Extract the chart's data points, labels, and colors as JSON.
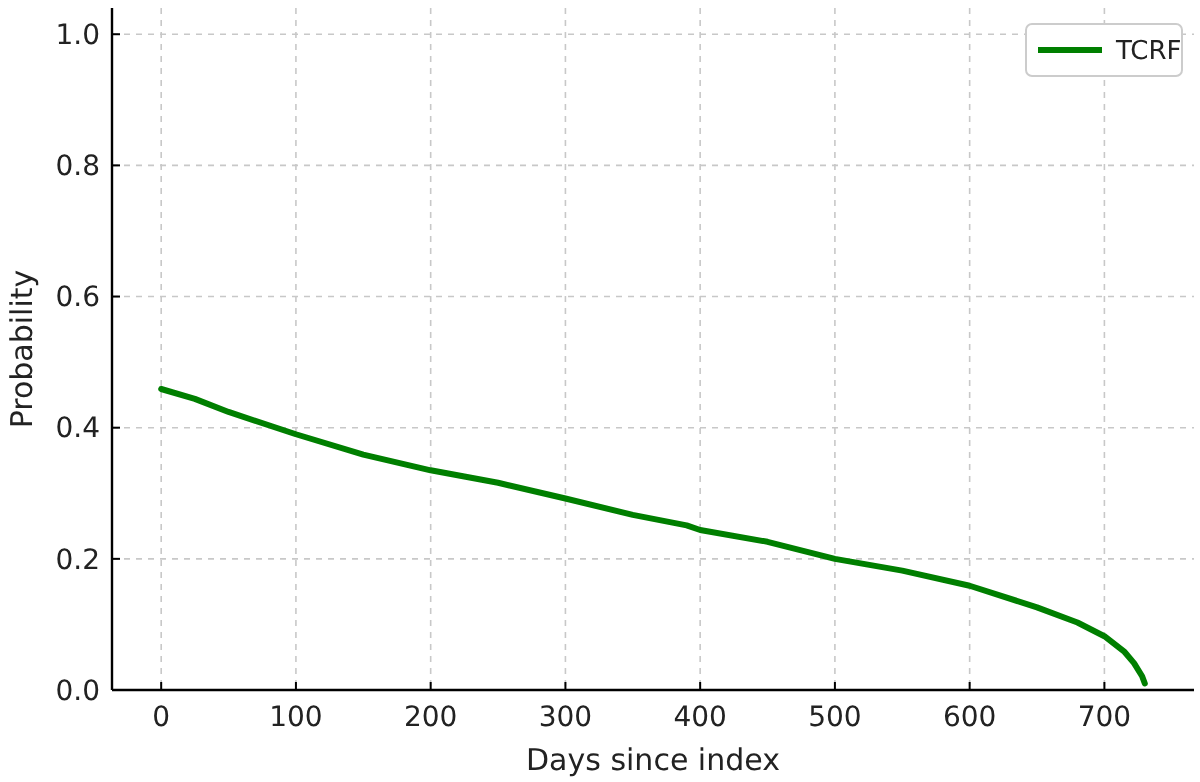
{
  "chart_data": {
    "type": "line",
    "xlabel": "Days since index",
    "ylabel": "Probability",
    "xlim": [
      -36.5,
      766.5
    ],
    "ylim": [
      0,
      1.04
    ],
    "xticks": [
      0,
      100,
      200,
      300,
      400,
      500,
      600,
      700
    ],
    "yticks": [
      {
        "value": 0,
        "label": "0.0"
      },
      {
        "value": 0.2,
        "label": "0.2"
      },
      {
        "value": 0.4,
        "label": "0.4"
      },
      {
        "value": 0.6,
        "label": "0.6"
      },
      {
        "value": 0.8,
        "label": "0.8"
      },
      {
        "value": 1,
        "label": "1.0"
      }
    ],
    "grid": true,
    "legend": "top right",
    "line_style": "solid",
    "marker": "none",
    "series": [
      {
        "name": "TCRF",
        "color": "#007f00",
        "x": [
          0,
          25,
          50,
          100,
          150,
          200,
          250,
          300,
          350,
          390,
          400,
          450,
          500,
          550,
          600,
          650,
          680,
          700,
          715,
          722,
          728,
          730
        ],
        "values": [
          0.459,
          0.444,
          0.424,
          0.39,
          0.359,
          0.335,
          0.316,
          0.292,
          0.267,
          0.251,
          0.244,
          0.226,
          0.2,
          0.182,
          0.159,
          0.126,
          0.103,
          0.082,
          0.058,
          0.041,
          0.021,
          0.01
        ]
      }
    ]
  }
}
